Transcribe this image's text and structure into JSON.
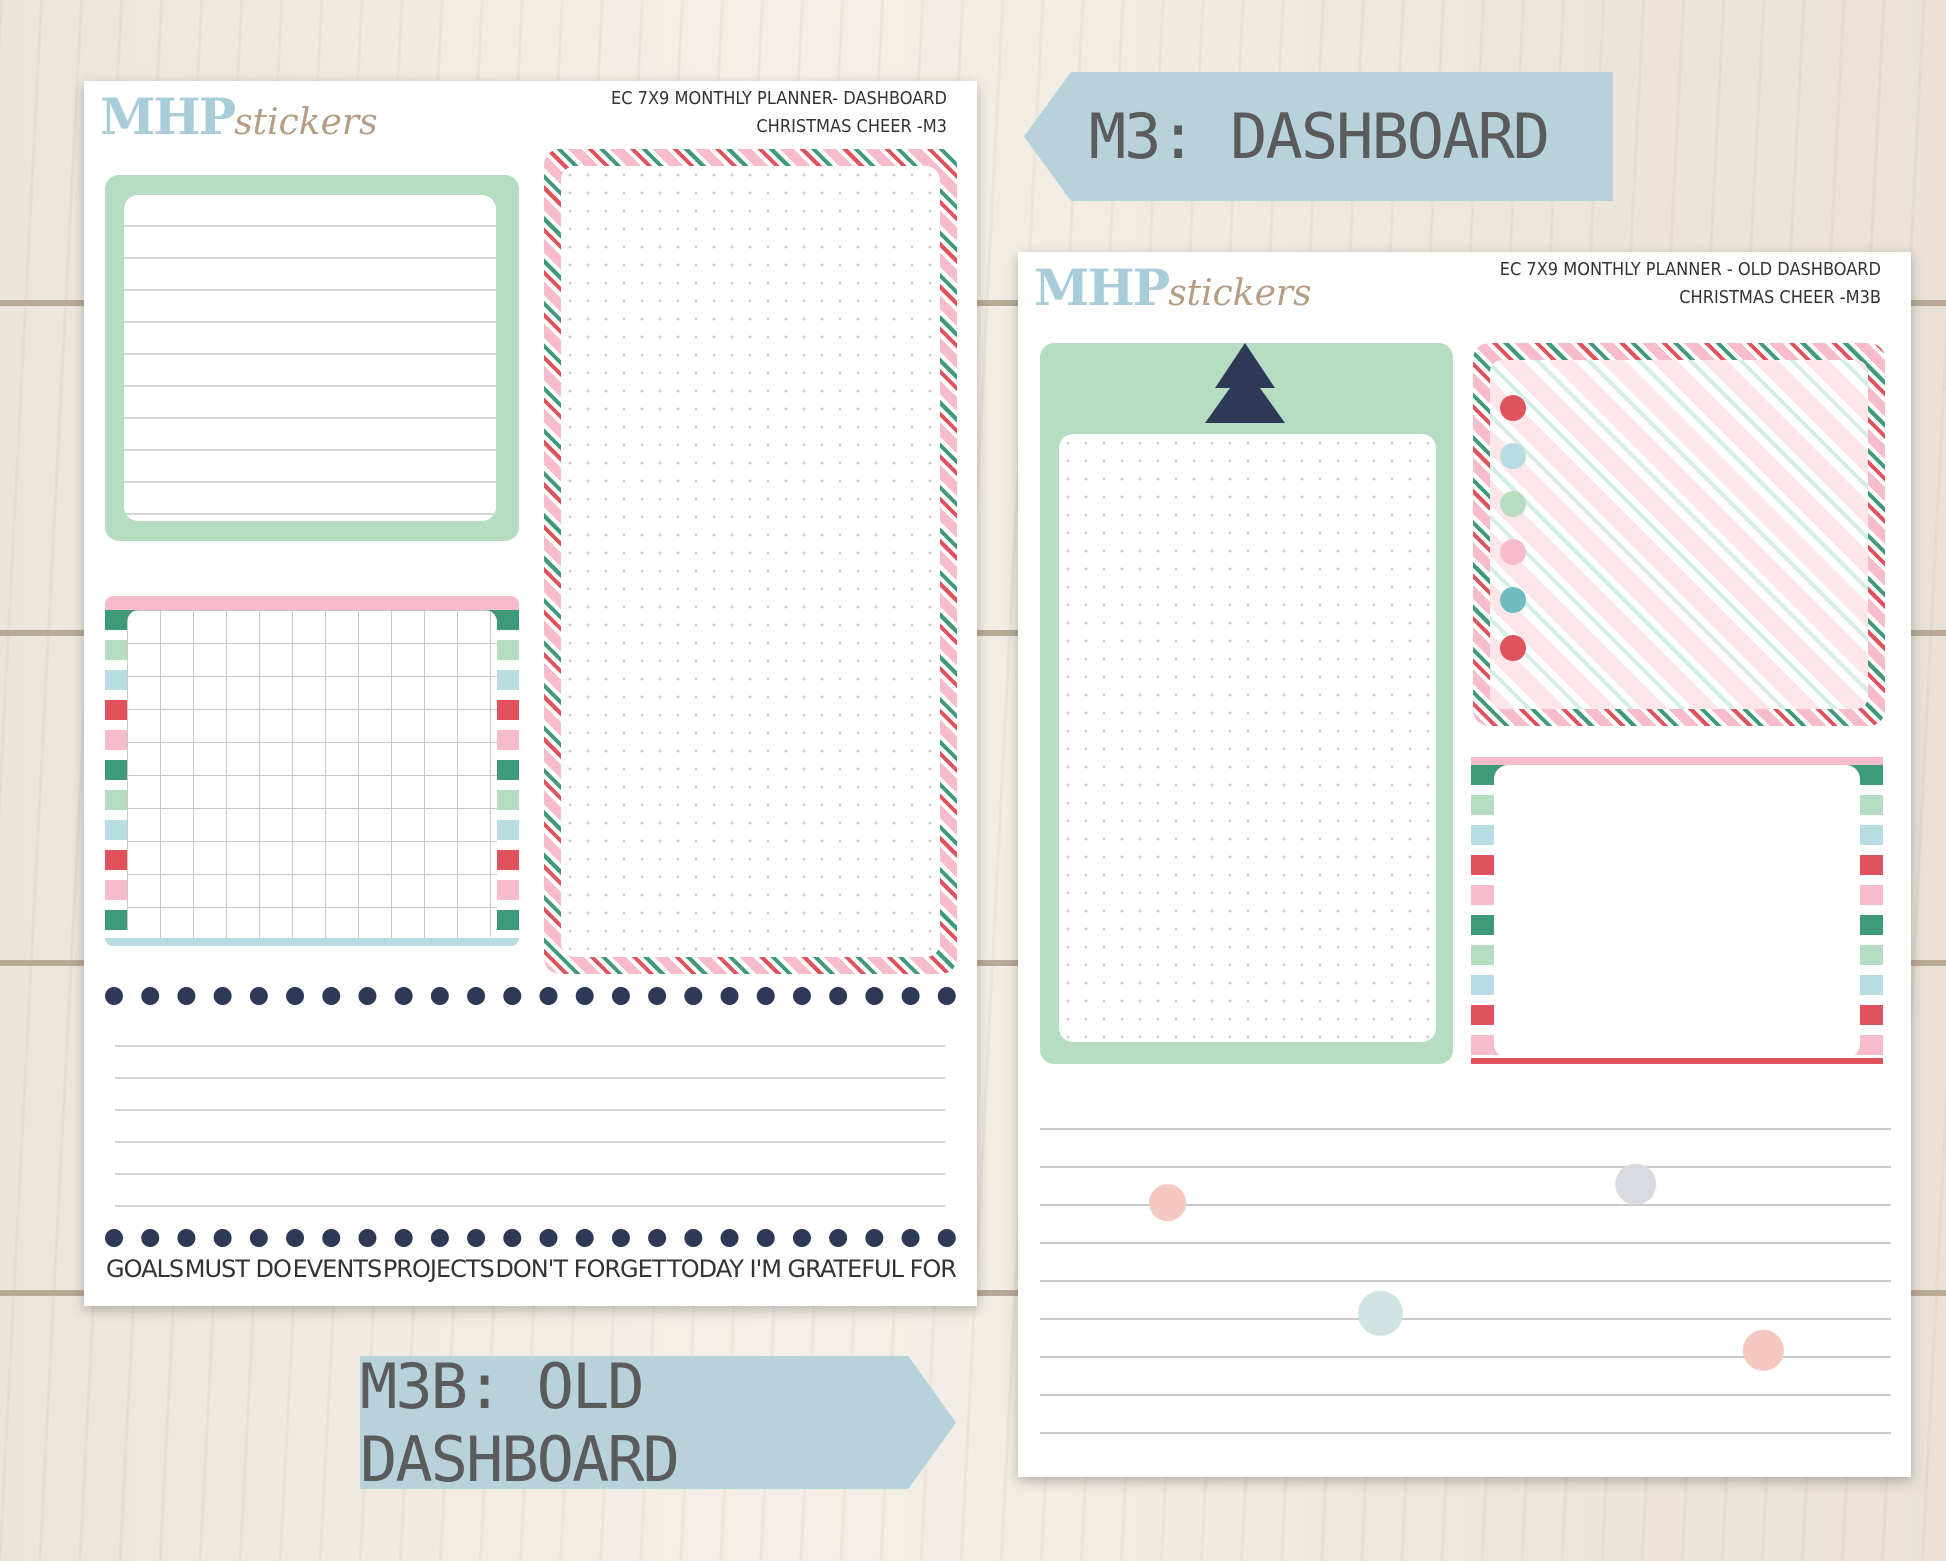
{
  "tags": {
    "dashboard": "M3: DASHBOARD",
    "old_dashboard": "M3B: OLD DASHBOARD"
  },
  "sheets": [
    {
      "logo_main": "MHP",
      "logo_script": "stickers",
      "title_line1": "EC 7X9 MONTHLY PLANNER- DASHBOARD",
      "title_line2": "CHRISTMAS CHEER -M3",
      "labels": [
        "GOALS",
        "MUST DO",
        "EVENTS",
        "PROJECTS",
        "DON'T FORGET",
        "TODAY I'M GRATEFUL FOR"
      ]
    },
    {
      "logo_main": "MHP",
      "logo_script": "stickers",
      "title_line1": "EC 7X9 MONTHLY PLANNER - OLD DASHBOARD",
      "title_line2": "CHRISTMAS CHEER -M3B"
    }
  ]
}
